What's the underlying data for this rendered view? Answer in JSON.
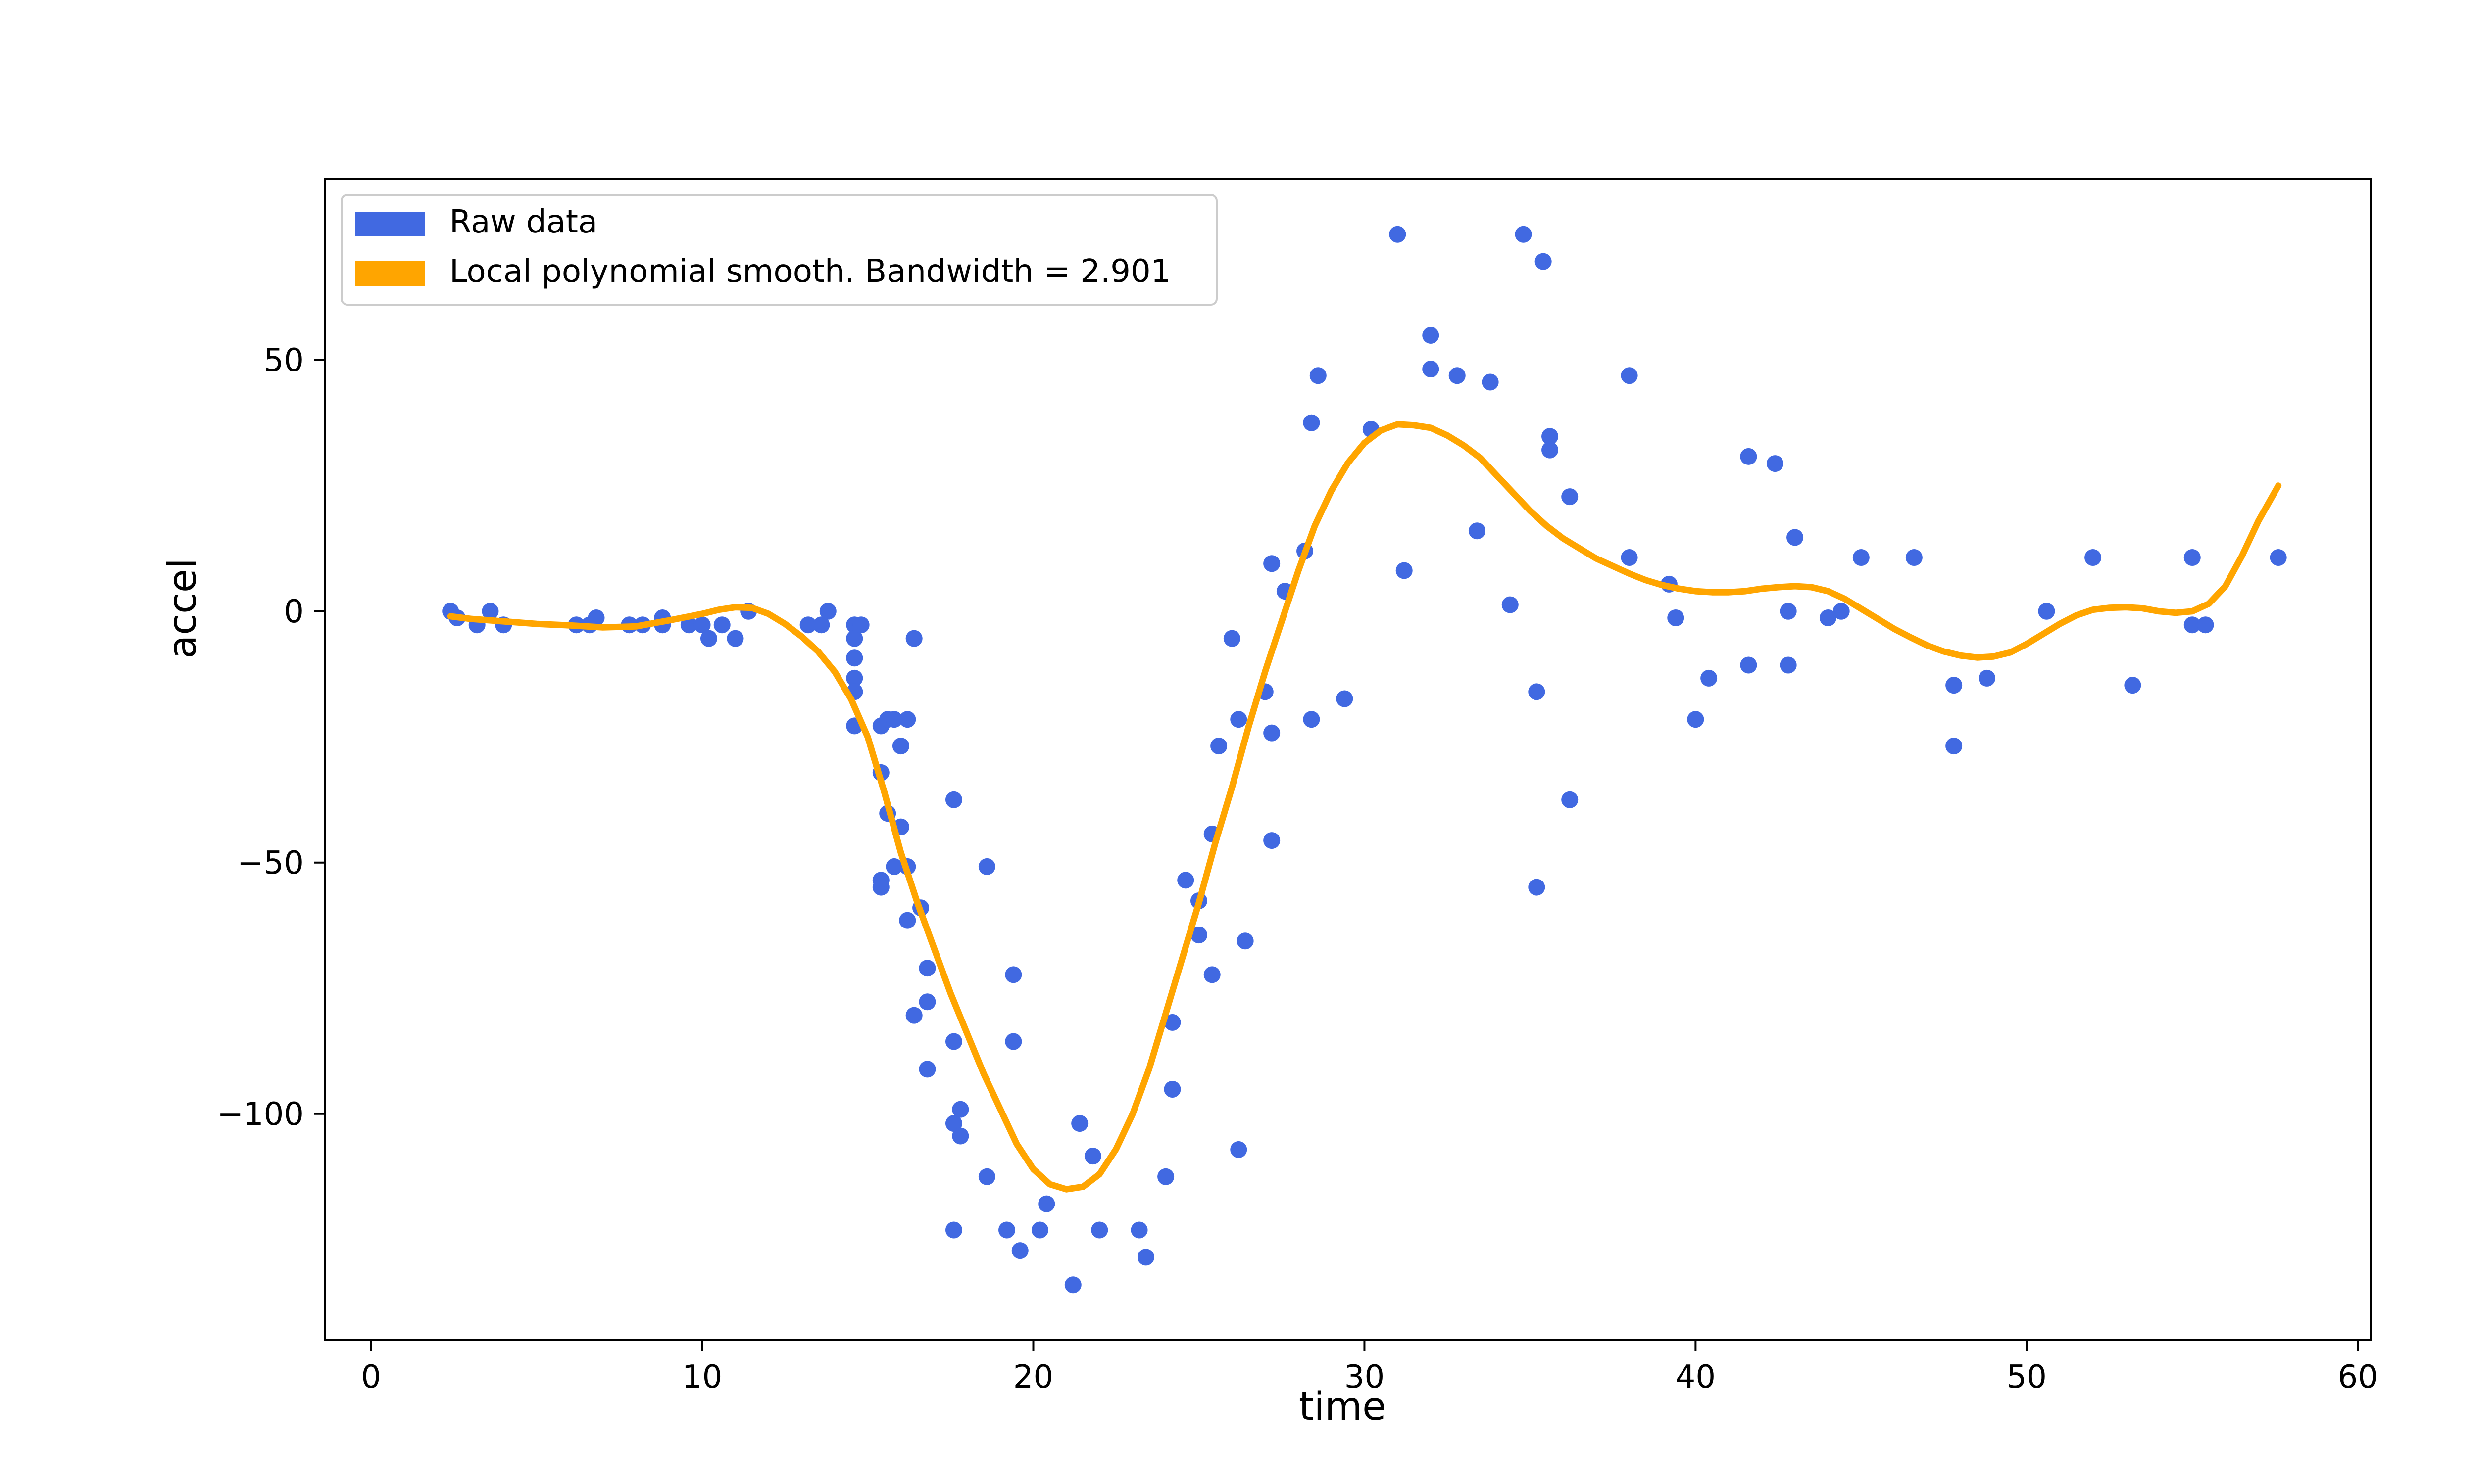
{
  "chart_data": {
    "type": "scatter",
    "xlabel": "time",
    "ylabel": "accel",
    "xlim": [
      -1.4,
      60.4
    ],
    "ylim": [
      -145,
      86
    ],
    "xticks": [
      0,
      10,
      20,
      30,
      40,
      50,
      60
    ],
    "yticks": [
      -100,
      -50,
      0,
      50
    ],
    "ytick_labels": [
      "−100",
      "−50",
      "0",
      "50"
    ],
    "xtick_labels": [
      "0",
      "10",
      "20",
      "30",
      "40",
      "50",
      "60"
    ],
    "grid": false,
    "legend_position": "top-left",
    "colors": {
      "raw": "#4169e1",
      "smooth": "#ffa500"
    },
    "legend": [
      {
        "label": "Raw data",
        "color": "#4169e1"
      },
      {
        "label": "Local polynomial smooth. Bandwidth = 2.901",
        "color": "#ffa500"
      }
    ],
    "series": [
      {
        "name": "Raw data",
        "kind": "scatter",
        "points": [
          [
            2.4,
            0
          ],
          [
            2.6,
            -1.3
          ],
          [
            3.2,
            -2.7
          ],
          [
            3.6,
            0
          ],
          [
            4.0,
            -2.7
          ],
          [
            6.2,
            -2.7
          ],
          [
            6.6,
            -2.7
          ],
          [
            6.8,
            -1.3
          ],
          [
            7.8,
            -2.7
          ],
          [
            8.2,
            -2.7
          ],
          [
            8.8,
            -1.3
          ],
          [
            8.8,
            -2.7
          ],
          [
            9.6,
            -2.7
          ],
          [
            10.0,
            -2.7
          ],
          [
            10.2,
            -5.4
          ],
          [
            10.6,
            -2.7
          ],
          [
            11.0,
            -5.4
          ],
          [
            11.4,
            0
          ],
          [
            13.2,
            -2.7
          ],
          [
            13.6,
            -2.7
          ],
          [
            13.8,
            0
          ],
          [
            14.6,
            -13.3
          ],
          [
            14.6,
            -2.7
          ],
          [
            14.6,
            -22.8
          ],
          [
            14.6,
            -5.4
          ],
          [
            14.6,
            -9.3
          ],
          [
            14.6,
            -16.0
          ],
          [
            14.8,
            -2.7
          ],
          [
            15.4,
            -22.8
          ],
          [
            15.4,
            -53.5
          ],
          [
            15.4,
            -32.1
          ],
          [
            15.4,
            -54.9
          ],
          [
            15.6,
            -40.2
          ],
          [
            15.6,
            -21.5
          ],
          [
            15.8,
            -21.5
          ],
          [
            15.8,
            -50.8
          ],
          [
            16.0,
            -42.9
          ],
          [
            16.0,
            -26.8
          ],
          [
            16.2,
            -61.5
          ],
          [
            16.2,
            -21.5
          ],
          [
            16.2,
            -50.8
          ],
          [
            16.4,
            -5.4
          ],
          [
            16.4,
            -80.4
          ],
          [
            16.6,
            -59.0
          ],
          [
            16.8,
            -71.0
          ],
          [
            16.8,
            -91.1
          ],
          [
            16.8,
            -77.7
          ],
          [
            17.6,
            -37.5
          ],
          [
            17.6,
            -85.6
          ],
          [
            17.6,
            -123.1
          ],
          [
            17.6,
            -101.9
          ],
          [
            17.8,
            -99.1
          ],
          [
            17.8,
            -104.4
          ],
          [
            18.6,
            -112.5
          ],
          [
            18.6,
            -50.8
          ],
          [
            19.2,
            -123.1
          ],
          [
            19.4,
            -85.6
          ],
          [
            19.4,
            -72.3
          ],
          [
            19.6,
            -127.2
          ],
          [
            20.2,
            -123.1
          ],
          [
            20.4,
            -117.9
          ],
          [
            21.2,
            -134.0
          ],
          [
            21.4,
            -101.9
          ],
          [
            21.8,
            -108.4
          ],
          [
            22.0,
            -123.1
          ],
          [
            23.2,
            -123.1
          ],
          [
            23.4,
            -128.5
          ],
          [
            24.0,
            -112.5
          ],
          [
            24.2,
            -95.1
          ],
          [
            24.2,
            -81.8
          ],
          [
            24.6,
            -53.5
          ],
          [
            25.0,
            -64.4
          ],
          [
            25.0,
            -57.6
          ],
          [
            25.4,
            -72.3
          ],
          [
            25.4,
            -44.3
          ],
          [
            25.6,
            -26.8
          ],
          [
            26.0,
            -5.4
          ],
          [
            26.2,
            -107.1
          ],
          [
            26.2,
            -21.5
          ],
          [
            26.4,
            -65.6
          ],
          [
            27.0,
            -16.0
          ],
          [
            27.2,
            -45.6
          ],
          [
            27.2,
            -24.2
          ],
          [
            27.2,
            9.5
          ],
          [
            27.6,
            4.0
          ],
          [
            28.2,
            12.0
          ],
          [
            28.4,
            -21.5
          ],
          [
            28.4,
            37.5
          ],
          [
            28.6,
            46.9
          ],
          [
            29.4,
            -17.4
          ],
          [
            30.2,
            36.2
          ],
          [
            31.0,
            75.0
          ],
          [
            31.2,
            8.1
          ],
          [
            32.0,
            54.9
          ],
          [
            32.0,
            48.2
          ],
          [
            32.8,
            46.9
          ],
          [
            33.4,
            16.0
          ],
          [
            33.8,
            45.6
          ],
          [
            34.4,
            1.3
          ],
          [
            34.8,
            75.0
          ],
          [
            35.2,
            -54.9
          ],
          [
            35.2,
            -16.0
          ],
          [
            35.4,
            69.6
          ],
          [
            35.6,
            34.8
          ],
          [
            35.6,
            32.1
          ],
          [
            36.2,
            -37.5
          ],
          [
            36.2,
            22.8
          ],
          [
            38.0,
            10.7
          ],
          [
            38.0,
            46.9
          ],
          [
            39.2,
            5.4
          ],
          [
            39.4,
            -1.3
          ],
          [
            40.0,
            -21.5
          ],
          [
            40.4,
            -13.3
          ],
          [
            41.6,
            -10.7
          ],
          [
            41.6,
            30.8
          ],
          [
            42.4,
            29.4
          ],
          [
            42.8,
            0
          ],
          [
            42.8,
            -10.7
          ],
          [
            43.0,
            14.7
          ],
          [
            44.0,
            -1.3
          ],
          [
            44.4,
            0
          ],
          [
            45.0,
            10.7
          ],
          [
            46.6,
            10.7
          ],
          [
            47.8,
            -14.7
          ],
          [
            47.8,
            -26.8
          ],
          [
            48.8,
            -13.3
          ],
          [
            50.6,
            0
          ],
          [
            52.0,
            10.7
          ],
          [
            53.2,
            -14.7
          ],
          [
            55.0,
            10.7
          ],
          [
            55.0,
            -2.7
          ],
          [
            55.4,
            -2.7
          ],
          [
            57.6,
            10.7
          ]
        ]
      },
      {
        "name": "Local polynomial smooth. Bandwidth = 2.901",
        "kind": "line",
        "points": [
          [
            2.4,
            -1
          ],
          [
            3,
            -1.5
          ],
          [
            4,
            -2
          ],
          [
            5,
            -2.5
          ],
          [
            6,
            -2.8
          ],
          [
            7,
            -3.2
          ],
          [
            8,
            -3
          ],
          [
            9,
            -1.8
          ],
          [
            10,
            -0.5
          ],
          [
            10.5,
            0.3
          ],
          [
            11,
            0.8
          ],
          [
            11.5,
            0.7
          ],
          [
            12,
            -0.5
          ],
          [
            12.5,
            -2.5
          ],
          [
            13,
            -5
          ],
          [
            13.5,
            -8
          ],
          [
            14,
            -12
          ],
          [
            14.5,
            -17.5
          ],
          [
            15,
            -25
          ],
          [
            15.5,
            -36
          ],
          [
            16,
            -48
          ],
          [
            16.5,
            -58
          ],
          [
            17,
            -67
          ],
          [
            17.5,
            -76
          ],
          [
            18,
            -84
          ],
          [
            18.5,
            -92
          ],
          [
            19,
            -99
          ],
          [
            19.5,
            -106
          ],
          [
            20,
            -111
          ],
          [
            20.5,
            -114
          ],
          [
            21,
            -115
          ],
          [
            21.5,
            -114.5
          ],
          [
            22,
            -112
          ],
          [
            22.5,
            -107
          ],
          [
            23,
            -100
          ],
          [
            23.5,
            -91
          ],
          [
            24,
            -80
          ],
          [
            24.5,
            -69
          ],
          [
            25,
            -58
          ],
          [
            25.5,
            -46
          ],
          [
            26,
            -35
          ],
          [
            26.5,
            -23
          ],
          [
            27,
            -12
          ],
          [
            27.5,
            -2
          ],
          [
            28,
            8
          ],
          [
            28.5,
            17
          ],
          [
            29,
            24
          ],
          [
            29.5,
            29.5
          ],
          [
            30,
            33.5
          ],
          [
            30.5,
            36
          ],
          [
            31,
            37.2
          ],
          [
            31.5,
            37
          ],
          [
            32,
            36.5
          ],
          [
            32.5,
            35
          ],
          [
            33,
            33
          ],
          [
            33.5,
            30.5
          ],
          [
            34,
            27
          ],
          [
            34.5,
            23.5
          ],
          [
            35,
            20
          ],
          [
            35.5,
            17
          ],
          [
            36,
            14.5
          ],
          [
            36.5,
            12.5
          ],
          [
            37,
            10.5
          ],
          [
            37.5,
            9
          ],
          [
            38,
            7.5
          ],
          [
            38.5,
            6.2
          ],
          [
            39,
            5.2
          ],
          [
            39.5,
            4.5
          ],
          [
            40,
            4
          ],
          [
            40.5,
            3.8
          ],
          [
            41,
            3.8
          ],
          [
            41.5,
            4
          ],
          [
            42,
            4.5
          ],
          [
            42.5,
            4.8
          ],
          [
            43,
            5
          ],
          [
            43.5,
            4.8
          ],
          [
            44,
            4
          ],
          [
            44.5,
            2.5
          ],
          [
            45,
            0.5
          ],
          [
            45.5,
            -1.5
          ],
          [
            46,
            -3.5
          ],
          [
            46.5,
            -5.2
          ],
          [
            47,
            -6.8
          ],
          [
            47.5,
            -8
          ],
          [
            48,
            -8.8
          ],
          [
            48.5,
            -9.2
          ],
          [
            49,
            -9
          ],
          [
            49.5,
            -8.2
          ],
          [
            50,
            -6.5
          ],
          [
            50.5,
            -4.5
          ],
          [
            51,
            -2.5
          ],
          [
            51.5,
            -0.8
          ],
          [
            52,
            0.3
          ],
          [
            52.5,
            0.7
          ],
          [
            53,
            0.8
          ],
          [
            53.5,
            0.6
          ],
          [
            54,
            0
          ],
          [
            54.5,
            -0.3
          ],
          [
            55,
            0
          ],
          [
            55.5,
            1.5
          ],
          [
            56,
            5
          ],
          [
            56.5,
            11
          ],
          [
            57,
            18
          ],
          [
            57.6,
            25
          ]
        ]
      }
    ]
  }
}
